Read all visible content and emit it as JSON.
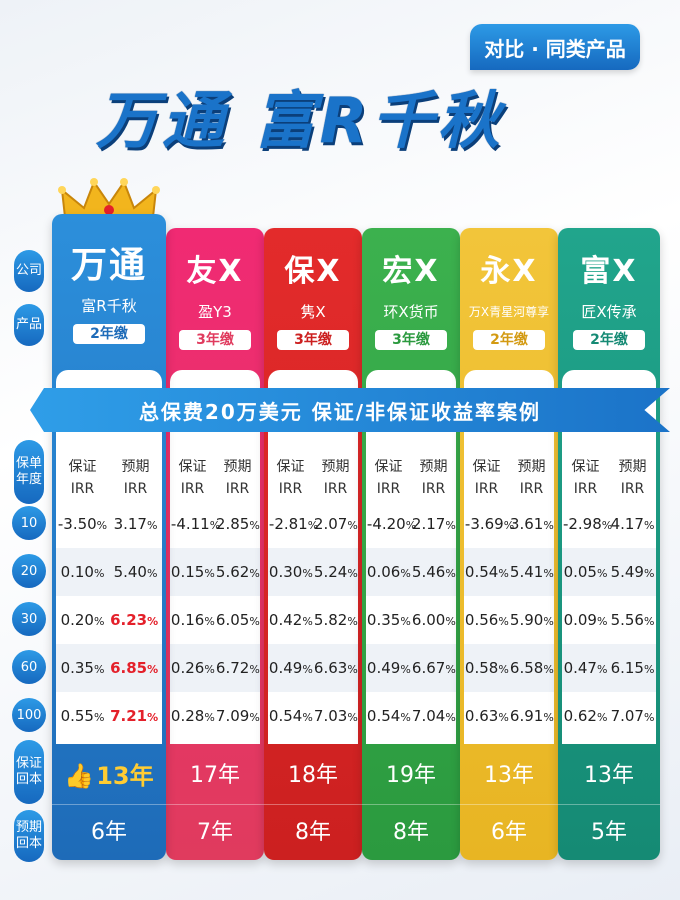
{
  "tag": "对比 · 同类产品",
  "title": "万通 富R千秋",
  "banner": "总保费20万美元  保证/非保证收益率案例",
  "side_labels": {
    "company": "公司",
    "product": "产品",
    "policy_year": "保单年度",
    "guaranteed_payback": "保证回本",
    "expected_payback": "预期回本"
  },
  "irr_header": {
    "guaranteed": "保证",
    "expected": "预期",
    "irr": "IRR"
  },
  "years": [
    "10",
    "20",
    "30",
    "60",
    "100"
  ],
  "columns": [
    {
      "company": "万通",
      "product": "富R千秋",
      "pay": "2年缴",
      "rows": [
        [
          "-3.50%",
          "3.17%"
        ],
        [
          "0.10%",
          "5.40%"
        ],
        [
          "0.20%",
          "6.23%"
        ],
        [
          "0.35%",
          "6.85%"
        ],
        [
          "0.55%",
          "7.21%"
        ]
      ],
      "guaranteed_payback": "13年",
      "expected_payback": "6年"
    },
    {
      "company": "友X",
      "product": "盈Y3",
      "pay": "3年缴",
      "rows": [
        [
          "-4.11%",
          "2.85%"
        ],
        [
          "0.15%",
          "5.62%"
        ],
        [
          "0.16%",
          "6.05%"
        ],
        [
          "0.26%",
          "6.72%"
        ],
        [
          "0.28%",
          "7.09%"
        ]
      ],
      "guaranteed_payback": "17年",
      "expected_payback": "7年"
    },
    {
      "company": "保X",
      "product": "隽X",
      "pay": "3年缴",
      "rows": [
        [
          "-2.81%",
          "2.07%"
        ],
        [
          "0.30%",
          "5.24%"
        ],
        [
          "0.42%",
          "5.82%"
        ],
        [
          "0.49%",
          "6.63%"
        ],
        [
          "0.54%",
          "7.03%"
        ]
      ],
      "guaranteed_payback": "18年",
      "expected_payback": "8年"
    },
    {
      "company": "宏X",
      "product": "环X货币",
      "pay": "3年缴",
      "rows": [
        [
          "-4.20%",
          "2.17%"
        ],
        [
          "0.06%",
          "5.46%"
        ],
        [
          "0.35%",
          "6.00%"
        ],
        [
          "0.49%",
          "6.67%"
        ],
        [
          "0.54%",
          "7.04%"
        ]
      ],
      "guaranteed_payback": "19年",
      "expected_payback": "8年"
    },
    {
      "company": "永X",
      "product": "万X青星河尊享",
      "pay": "2年缴",
      "rows": [
        [
          "-3.69%",
          "3.61%"
        ],
        [
          "0.54%",
          "5.41%"
        ],
        [
          "0.56%",
          "5.90%"
        ],
        [
          "0.58%",
          "6.58%"
        ],
        [
          "0.63%",
          "6.91%"
        ]
      ],
      "guaranteed_payback": "13年",
      "expected_payback": "6年"
    },
    {
      "company": "富X",
      "product": "匠X传承",
      "pay": "2年缴",
      "rows": [
        [
          "-2.98%",
          "4.17%"
        ],
        [
          "0.05%",
          "5.49%"
        ],
        [
          "0.09%",
          "5.56%"
        ],
        [
          "0.47%",
          "6.15%"
        ],
        [
          "0.62%",
          "7.07%"
        ]
      ],
      "guaranteed_payback": "13年",
      "expected_payback": "5年"
    }
  ]
}
